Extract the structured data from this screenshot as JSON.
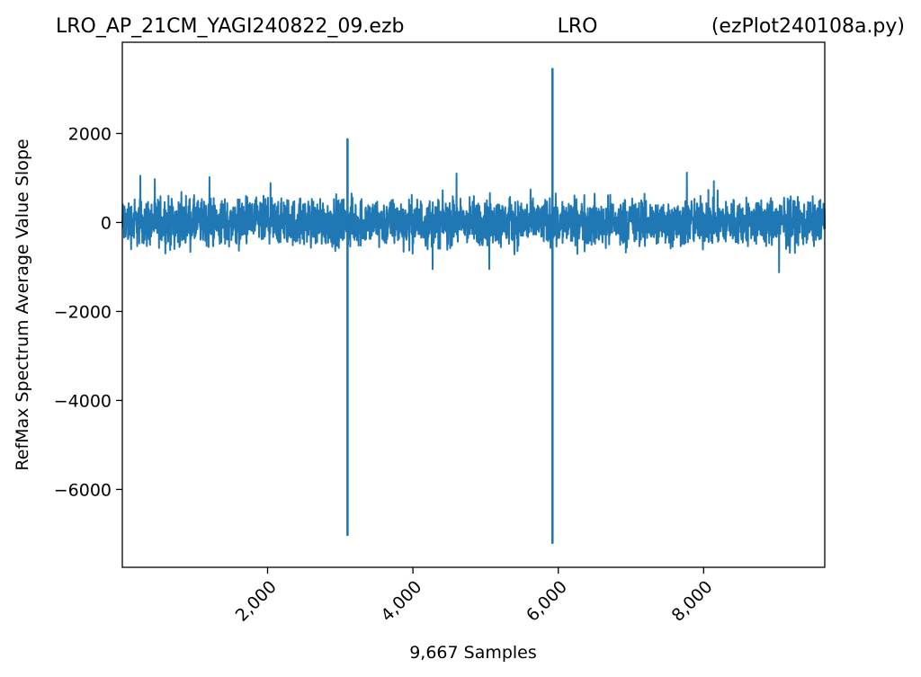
{
  "header": {
    "title_left": "LRO_AP_21CM_YAGI240822_09.ezb",
    "title_center": "LRO",
    "title_right": "(ezPlot240108a.py)"
  },
  "chart_data": {
    "type": "line",
    "xlabel": "9,667 Samples",
    "ylabel": "RefMax Spectrum Average Value Slope",
    "xlim": [
      1,
      9667
    ],
    "ylim": [
      -7750,
      4050
    ],
    "x_ticks": [
      2000,
      4000,
      6000,
      8000
    ],
    "x_tick_labels": [
      "2,000",
      "4,000",
      "6,000",
      "8,000"
    ],
    "y_ticks": [
      2000,
      0,
      -2000,
      -4000,
      -6000
    ],
    "y_tick_labels": [
      "2000",
      "0",
      "−2000",
      "−4000",
      "−6000"
    ],
    "grid": false,
    "color": "#1f77b4",
    "noise_band": {
      "typical_min": -550,
      "typical_max": 550,
      "peak_min": -1150,
      "peak_max": 1120
    },
    "spikes": [
      {
        "x": 3100,
        "y_max": 1870,
        "y_min": -7020
      },
      {
        "x": 5920,
        "y_max": 3450,
        "y_min": -7200
      }
    ],
    "notable_excursions": [
      {
        "x": 250,
        "y": 1050
      },
      {
        "x": 1200,
        "y": 1020
      },
      {
        "x": 4600,
        "y": 1100
      },
      {
        "x": 7770,
        "y": 1120
      },
      {
        "x": 4270,
        "y": -1050
      },
      {
        "x": 5050,
        "y": -1050
      },
      {
        "x": 9040,
        "y": -1120
      }
    ]
  }
}
